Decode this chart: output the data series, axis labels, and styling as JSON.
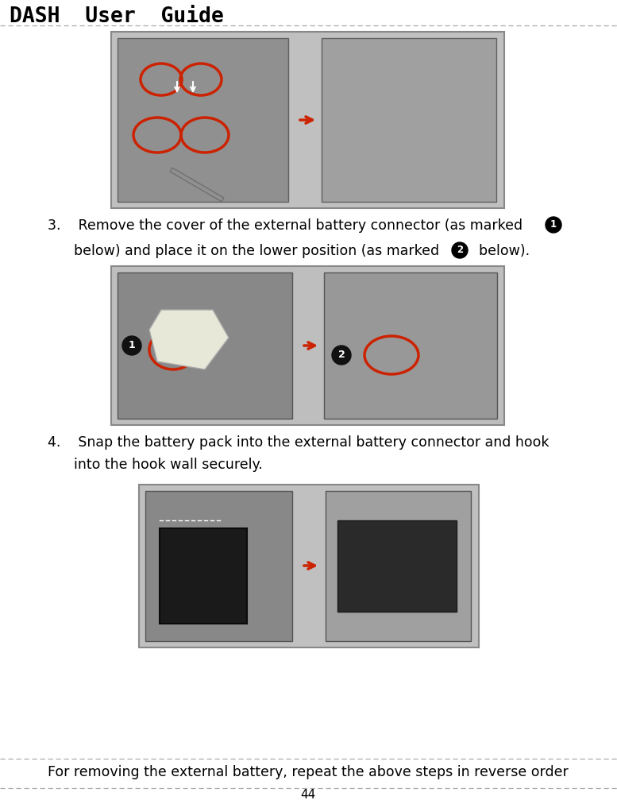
{
  "title": "DASH  User  Guide",
  "page_number": "44",
  "bg_color": "#ffffff",
  "dashed_line_color": "#aaaaaa",
  "step3_line1": "3.    Remove the cover of the external battery connector (as marked ",
  "step3_circled1": "1",
  "step3_line2": "      below) and place it on the lower position (as marked ",
  "step3_circled2": "2",
  "step3_line2end": "  below).",
  "step4_line1": "4.    Snap the battery pack into the external battery connector and hook",
  "step4_line2": "      into the hook wall securely.",
  "footer_text": "For removing the external battery, repeat the above steps in reverse order",
  "title_fontsize": 19,
  "body_fontsize": 12.5,
  "footer_fontsize": 12.5,
  "page_num_fontsize": 11,
  "img1_gray": "#b8b8b8",
  "img2_gray": "#b0b0b0",
  "img3_gray": "#b4b4b4",
  "img_border": "#888888",
  "arrow_color": "#cc2200",
  "circle_color": "#cc2200"
}
